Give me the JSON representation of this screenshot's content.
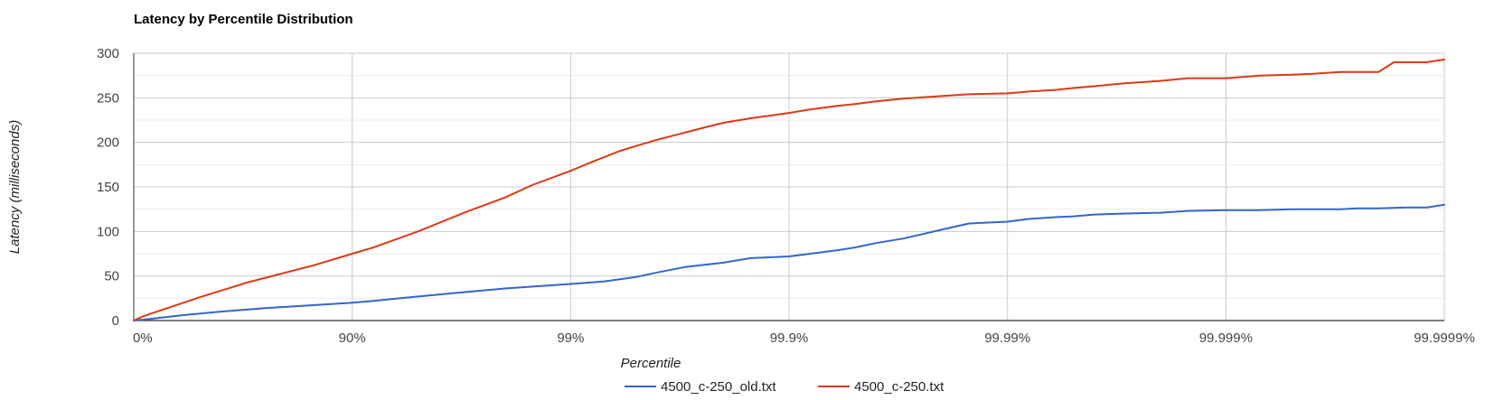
{
  "chart_data": {
    "type": "line",
    "title": "Latency by Percentile Distribution",
    "xlabel": "Percentile",
    "ylabel": "Latency (milliseconds)",
    "x_scale": "log-percentile",
    "x_ticks": [
      "0%",
      "90%",
      "99%",
      "99.9%",
      "99.99%",
      "99.999%",
      "99.9999%"
    ],
    "y_ticks": [
      "0",
      "50",
      "100",
      "150",
      "200",
      "250",
      "300"
    ],
    "ylim": [
      0,
      300
    ],
    "grid": true,
    "legend_position": "bottom",
    "series": [
      {
        "name": "4500_c-250_old.txt",
        "color": "#3366cc",
        "points": [
          [
            "0%",
            0
          ],
          [
            "10%",
            1
          ],
          [
            "40%",
            6
          ],
          [
            "60%",
            10
          ],
          [
            "75%",
            14
          ],
          [
            "90%",
            20
          ],
          [
            "92%",
            22
          ],
          [
            "95%",
            27
          ],
          [
            "97%",
            32
          ],
          [
            "98%",
            36
          ],
          [
            "99%",
            41
          ],
          [
            "99.3%",
            44
          ],
          [
            "99.5%",
            49
          ],
          [
            "99.6%",
            54
          ],
          [
            "99.7%",
            60
          ],
          [
            "99.8%",
            65
          ],
          [
            "99.85%",
            70
          ],
          [
            "99.9%",
            72
          ],
          [
            "99.92%",
            75
          ],
          [
            "99.94%",
            79
          ],
          [
            "99.95%",
            82
          ],
          [
            "99.96%",
            87
          ],
          [
            "99.97%",
            92
          ],
          [
            "99.98%",
            102
          ],
          [
            "99.985%",
            109
          ],
          [
            "99.99%",
            111
          ],
          [
            "99.992%",
            114
          ],
          [
            "99.994%",
            116
          ],
          [
            "99.995%",
            117
          ],
          [
            "99.996%",
            119
          ],
          [
            "99.997%",
            120
          ],
          [
            "99.998%",
            121
          ],
          [
            "99.9985%",
            123
          ],
          [
            "99.999%",
            124
          ],
          [
            "99.9993%",
            124
          ],
          [
            "99.9995%",
            125
          ],
          [
            "99.9996%",
            125
          ],
          [
            "99.9997%",
            125
          ],
          [
            "99.99975%",
            126
          ],
          [
            "99.9998%",
            126
          ],
          [
            "99.99985%",
            127
          ],
          [
            "99.99988%",
            127
          ],
          [
            "99.9999%",
            130
          ]
        ]
      },
      {
        "name": "4500_c-250.txt",
        "color": "#dc3912",
        "points": [
          [
            "0%",
            0
          ],
          [
            "10%",
            5
          ],
          [
            "30%",
            14
          ],
          [
            "50%",
            26
          ],
          [
            "70%",
            43
          ],
          [
            "85%",
            62
          ],
          [
            "90%",
            75
          ],
          [
            "92%",
            82
          ],
          [
            "95%",
            100
          ],
          [
            "97%",
            122
          ],
          [
            "98%",
            138
          ],
          [
            "98.5%",
            152
          ],
          [
            "99%",
            168
          ],
          [
            "99.2%",
            178
          ],
          [
            "99.4%",
            190
          ],
          [
            "99.5%",
            196
          ],
          [
            "99.6%",
            203
          ],
          [
            "99.7%",
            211
          ],
          [
            "99.75%",
            216
          ],
          [
            "99.8%",
            222
          ],
          [
            "99.85%",
            227
          ],
          [
            "99.9%",
            233
          ],
          [
            "99.92%",
            237
          ],
          [
            "99.94%",
            241
          ],
          [
            "99.95%",
            243
          ],
          [
            "99.96%",
            246
          ],
          [
            "99.97%",
            249
          ],
          [
            "99.98%",
            252
          ],
          [
            "99.985%",
            254
          ],
          [
            "99.99%",
            255
          ],
          [
            "99.992%",
            257
          ],
          [
            "99.994%",
            259
          ],
          [
            "99.995%",
            261
          ],
          [
            "99.996%",
            263
          ],
          [
            "99.997%",
            266
          ],
          [
            "99.998%",
            269
          ],
          [
            "99.9985%",
            272
          ],
          [
            "99.999%",
            272
          ],
          [
            "99.9993%",
            275
          ],
          [
            "99.9995%",
            276
          ],
          [
            "99.9996%",
            277
          ],
          [
            "99.9997%",
            279
          ],
          [
            "99.99975%",
            279
          ],
          [
            "99.9998%",
            279
          ],
          [
            "99.99983%",
            290
          ],
          [
            "99.99985%",
            290
          ],
          [
            "99.99988%",
            290
          ],
          [
            "99.9999%",
            293
          ]
        ]
      }
    ]
  }
}
